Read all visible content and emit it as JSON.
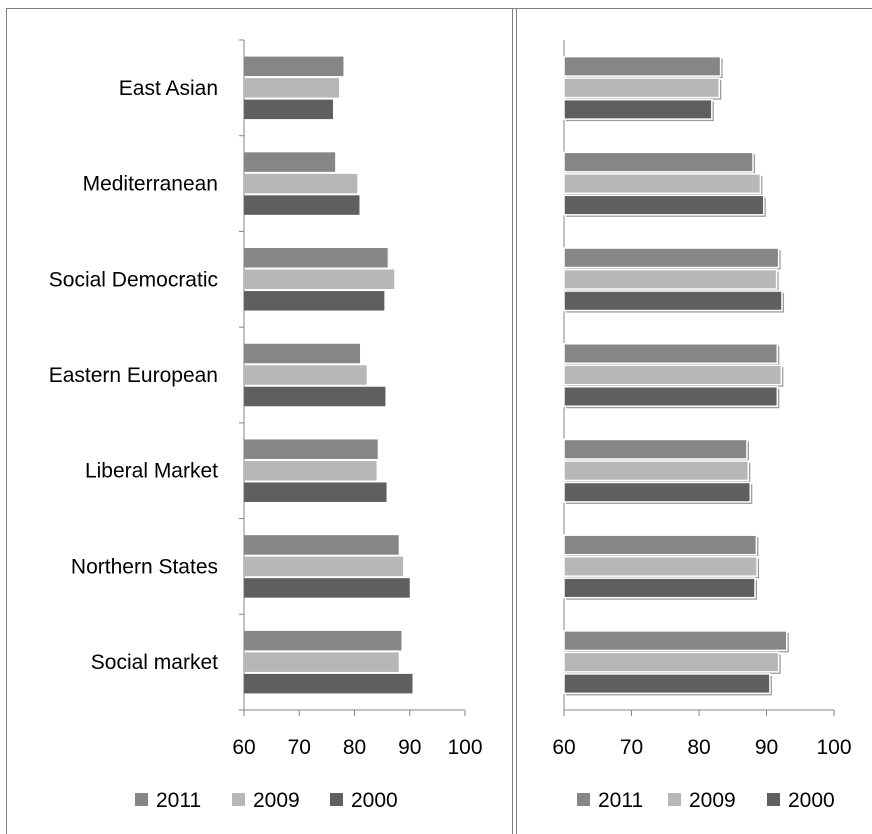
{
  "colors": {
    "2011": "#868686",
    "2009": "#b7b7b7",
    "2000": "#5f5f5f",
    "axis": "#868686",
    "frame": "#7f7f7f"
  },
  "chart_data": [
    {
      "type": "bar",
      "orientation": "horizontal",
      "show_category_labels": true,
      "bar_shadow": false,
      "categories": [
        "East Asian",
        "Mediterranean",
        "Social Democratic",
        "Eastern European",
        "Liberal Market",
        "Northern States",
        "Social market"
      ],
      "series": [
        {
          "name": "2011",
          "values": [
            78,
            76.5,
            86,
            81,
            84.2,
            88,
            88.5
          ]
        },
        {
          "name": "2009",
          "values": [
            77.2,
            80.5,
            87.2,
            82.2,
            84,
            88.8,
            88
          ]
        },
        {
          "name": "2000",
          "values": [
            76.1,
            80.9,
            85.4,
            85.6,
            85.8,
            90,
            90.5
          ]
        }
      ],
      "xlim": [
        60,
        100
      ],
      "xticks": [
        "60",
        "70",
        "80",
        "90",
        "100"
      ],
      "legend": {
        "position": "bottom",
        "items": [
          "2011",
          "2009",
          "2000"
        ]
      },
      "grid": false
    },
    {
      "type": "bar",
      "orientation": "horizontal",
      "show_category_labels": false,
      "bar_shadow": true,
      "categories": [
        "East Asian",
        "Mediterranean",
        "Social Democratic",
        "Eastern European",
        "Liberal Market",
        "Northern States",
        "Social market"
      ],
      "series": [
        {
          "name": "2011",
          "values": [
            83.2,
            88,
            91.8,
            91.6,
            87.1,
            88.5,
            93
          ]
        },
        {
          "name": "2009",
          "values": [
            83,
            89.1,
            91.5,
            92.2,
            87.3,
            88.6,
            91.8
          ]
        },
        {
          "name": "2000",
          "values": [
            81.9,
            89.6,
            92.3,
            91.6,
            87.6,
            88.3,
            90.5
          ]
        }
      ],
      "xlim": [
        60,
        100
      ],
      "xticks": [
        "60",
        "70",
        "80",
        "90",
        "100"
      ],
      "legend": {
        "position": "bottom",
        "items": [
          "2011",
          "2009",
          "2000"
        ]
      },
      "grid": false
    }
  ]
}
